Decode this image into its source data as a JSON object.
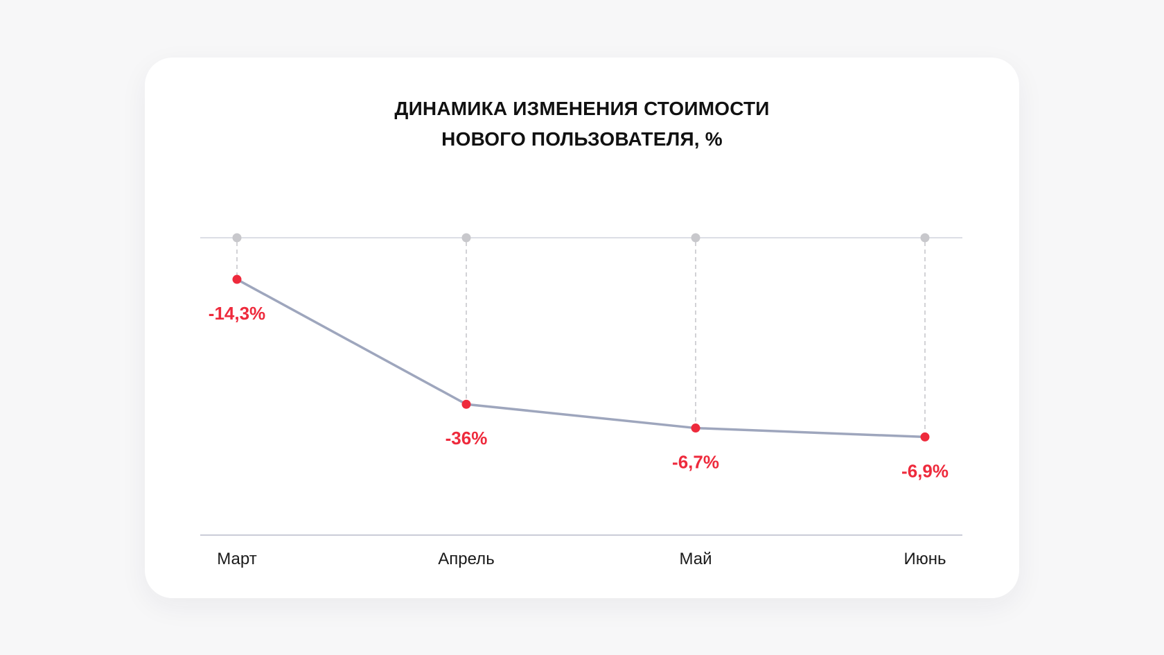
{
  "chart_data": {
    "type": "line",
    "title": [
      "ДИНАМИКА ИЗМЕНЕНИЯ СТОИМОСТИ",
      "НОВОГО ПОЛЬЗОВАТЕЛЯ, %"
    ],
    "categories": [
      "Март",
      "Апрель",
      "Май",
      "Июнь"
    ],
    "values": [
      -14.3,
      -36,
      -6.7,
      -6.9
    ],
    "data_labels": [
      "-14,3%",
      "-36%",
      "-6,7%",
      "-6,9%"
    ],
    "grid": false,
    "legend": "none"
  },
  "colors": {
    "line": "#9ea6bd",
    "point": "#ee2a3c",
    "label": "#ee2a3c",
    "top_marker": "#c8c8cc",
    "axis": "#b9bccb",
    "dashed": "#c4c4c8"
  }
}
